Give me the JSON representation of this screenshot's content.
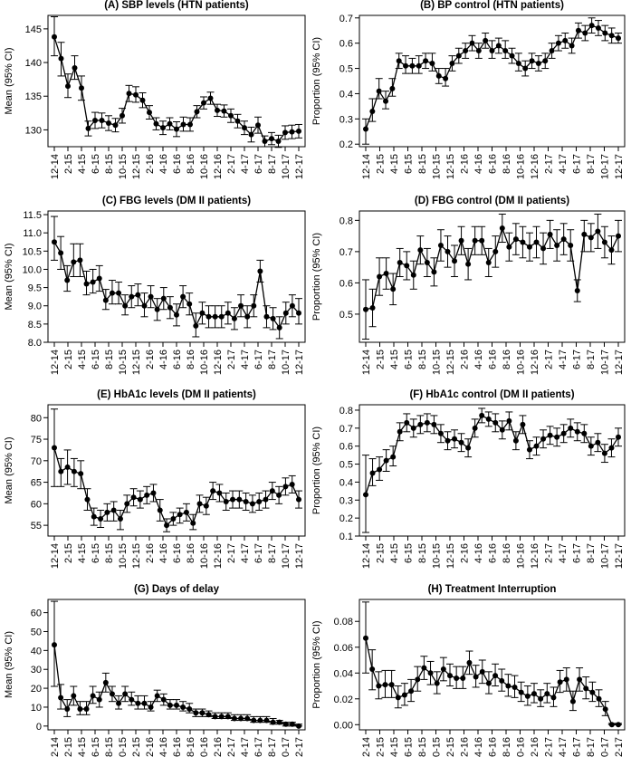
{
  "x_tick_labels": [
    "12-14",
    "2-15",
    "4-15",
    "6-15",
    "8-15",
    "10-15",
    "12-15",
    "2-16",
    "4-16",
    "6-16",
    "8-16",
    "10-16",
    "12-16",
    "2-17",
    "4-17",
    "6-17",
    "8-17",
    "10-17",
    "12-17"
  ],
  "chart_data": [
    {
      "type": "line",
      "title": "(A) SBP levels (HTN patients)",
      "ylabel": "Mean (95% CI)",
      "ylim": [
        127.5,
        147
      ],
      "yticks": [
        130,
        135,
        140,
        145
      ],
      "grid": false,
      "values": [
        143.8,
        140.6,
        136.5,
        139.2,
        136.2,
        130.2,
        131.4,
        131.4,
        131.0,
        130.7,
        132.1,
        135.4,
        135.2,
        134.4,
        132.6,
        130.9,
        130.3,
        130.9,
        130.1,
        130.8,
        130.8,
        132.7,
        134.0,
        134.7,
        132.9,
        132.8,
        132.1,
        131.3,
        130.3,
        129.3,
        130.7,
        128.3,
        128.7,
        128.3,
        129.6,
        129.7,
        129.8
      ],
      "lower": [
        141.0,
        138.0,
        134.8,
        137.5,
        134.4,
        129.1,
        130.2,
        130.3,
        129.9,
        129.7,
        131.0,
        134.2,
        134.1,
        133.3,
        131.6,
        130.0,
        129.3,
        130.0,
        129.0,
        129.8,
        129.8,
        131.8,
        133.1,
        133.8,
        132.0,
        131.9,
        131.1,
        130.3,
        129.3,
        128.2,
        129.5,
        127.5,
        127.8,
        127.4,
        128.6,
        128.7,
        128.8
      ],
      "upper": [
        146.8,
        143.0,
        138.3,
        141.0,
        138.0,
        131.3,
        132.6,
        132.5,
        132.1,
        131.7,
        133.2,
        136.6,
        136.4,
        135.5,
        133.6,
        131.8,
        131.3,
        131.8,
        131.2,
        131.9,
        131.8,
        133.6,
        134.9,
        135.6,
        133.8,
        133.7,
        133.1,
        132.3,
        131.3,
        130.4,
        131.9,
        129.1,
        129.6,
        129.2,
        130.6,
        130.7,
        130.8
      ]
    },
    {
      "type": "line",
      "title": "(B) BP control (HTN patients)",
      "ylabel": "Proportion (95% CI)",
      "ylim": [
        0.19,
        0.71
      ],
      "yticks": [
        0.2,
        0.3,
        0.4,
        0.5,
        0.6,
        0.7
      ],
      "grid": false,
      "values": [
        0.26,
        0.33,
        0.41,
        0.37,
        0.42,
        0.53,
        0.51,
        0.51,
        0.51,
        0.53,
        0.52,
        0.47,
        0.46,
        0.52,
        0.55,
        0.57,
        0.6,
        0.57,
        0.61,
        0.57,
        0.59,
        0.57,
        0.55,
        0.52,
        0.5,
        0.53,
        0.52,
        0.53,
        0.57,
        0.6,
        0.61,
        0.59,
        0.65,
        0.64,
        0.67,
        0.66,
        0.64,
        0.63,
        0.62
      ],
      "lower": [
        0.2,
        0.29,
        0.38,
        0.34,
        0.39,
        0.5,
        0.48,
        0.48,
        0.48,
        0.5,
        0.49,
        0.44,
        0.43,
        0.49,
        0.52,
        0.54,
        0.57,
        0.54,
        0.58,
        0.54,
        0.56,
        0.54,
        0.52,
        0.49,
        0.47,
        0.5,
        0.49,
        0.5,
        0.54,
        0.57,
        0.58,
        0.56,
        0.62,
        0.61,
        0.64,
        0.63,
        0.61,
        0.6,
        0.6
      ],
      "upper": [
        0.3,
        0.38,
        0.46,
        0.41,
        0.46,
        0.56,
        0.55,
        0.54,
        0.55,
        0.56,
        0.56,
        0.5,
        0.5,
        0.55,
        0.58,
        0.6,
        0.63,
        0.6,
        0.64,
        0.61,
        0.62,
        0.61,
        0.58,
        0.56,
        0.53,
        0.56,
        0.55,
        0.56,
        0.6,
        0.63,
        0.64,
        0.62,
        0.68,
        0.67,
        0.7,
        0.69,
        0.67,
        0.66,
        0.64
      ]
    },
    {
      "type": "line",
      "title": "(C) FBG levels (DM II patients)",
      "ylabel": "Mean (95% CI)",
      "ylim": [
        8.0,
        11.6
      ],
      "yticks": [
        8.0,
        8.5,
        9.0,
        9.5,
        10.0,
        10.5,
        11.0,
        11.5
      ],
      "grid": false,
      "values": [
        10.75,
        10.45,
        9.7,
        10.2,
        10.25,
        9.6,
        9.65,
        9.75,
        9.15,
        9.35,
        9.35,
        9.0,
        9.25,
        9.3,
        9.0,
        9.25,
        8.9,
        9.2,
        8.95,
        8.75,
        9.25,
        9.05,
        8.45,
        8.8,
        8.7,
        8.7,
        8.7,
        8.8,
        8.65,
        9.0,
        8.7,
        9.0,
        9.95,
        8.7,
        8.65,
        8.4,
        8.8,
        9.0,
        8.8
      ],
      "lower": [
        10.25,
        10.0,
        9.4,
        9.8,
        9.8,
        9.3,
        9.35,
        9.4,
        8.9,
        9.05,
        9.05,
        8.75,
        8.95,
        9.0,
        8.7,
        8.95,
        8.6,
        8.9,
        8.65,
        8.45,
        8.95,
        8.75,
        8.15,
        8.5,
        8.4,
        8.4,
        8.4,
        8.5,
        8.35,
        8.7,
        8.4,
        8.7,
        9.65,
        8.4,
        8.35,
        8.1,
        8.5,
        8.7,
        8.5
      ],
      "upper": [
        11.45,
        10.9,
        10.1,
        10.7,
        10.7,
        9.95,
        10.0,
        10.1,
        9.45,
        9.7,
        9.65,
        9.3,
        9.55,
        9.6,
        9.35,
        9.55,
        9.2,
        9.5,
        9.25,
        9.05,
        9.55,
        9.35,
        8.8,
        9.1,
        9.0,
        9.0,
        9.0,
        9.1,
        8.95,
        9.3,
        9.0,
        9.3,
        10.25,
        9.0,
        8.95,
        8.7,
        9.1,
        9.3,
        9.2
      ]
    },
    {
      "type": "line",
      "title": "(D) FBG control (DM II patients)",
      "ylabel": "Proportion (95% CI)",
      "ylim": [
        0.41,
        0.83
      ],
      "yticks": [
        0.5,
        0.6,
        0.7,
        0.8
      ],
      "grid": false,
      "values": [
        0.515,
        0.52,
        0.62,
        0.63,
        0.58,
        0.665,
        0.655,
        0.625,
        0.705,
        0.665,
        0.635,
        0.72,
        0.7,
        0.67,
        0.735,
        0.66,
        0.735,
        0.735,
        0.665,
        0.7,
        0.775,
        0.715,
        0.74,
        0.73,
        0.715,
        0.73,
        0.71,
        0.755,
        0.72,
        0.74,
        0.72,
        0.575,
        0.755,
        0.745,
        0.765,
        0.73,
        0.705,
        0.75
      ],
      "lower": [
        0.42,
        0.46,
        0.56,
        0.58,
        0.53,
        0.62,
        0.61,
        0.58,
        0.66,
        0.62,
        0.59,
        0.67,
        0.65,
        0.62,
        0.69,
        0.61,
        0.69,
        0.69,
        0.62,
        0.65,
        0.73,
        0.67,
        0.69,
        0.68,
        0.67,
        0.68,
        0.66,
        0.71,
        0.67,
        0.69,
        0.67,
        0.54,
        0.7,
        0.7,
        0.71,
        0.68,
        0.66,
        0.7
      ],
      "upper": [
        0.61,
        0.58,
        0.68,
        0.68,
        0.63,
        0.71,
        0.7,
        0.67,
        0.75,
        0.71,
        0.68,
        0.77,
        0.75,
        0.72,
        0.78,
        0.71,
        0.78,
        0.78,
        0.71,
        0.75,
        0.82,
        0.76,
        0.79,
        0.78,
        0.76,
        0.78,
        0.76,
        0.8,
        0.77,
        0.79,
        0.77,
        0.61,
        0.8,
        0.79,
        0.82,
        0.78,
        0.75,
        0.8
      ]
    },
    {
      "type": "line",
      "title": "(E) HbA1c levels (DM II patients)",
      "ylabel": "Mean (95% CI)",
      "ylim": [
        52.5,
        83
      ],
      "yticks": [
        55,
        60,
        65,
        70,
        75,
        80
      ],
      "grid": false,
      "values": [
        73,
        67.5,
        68.5,
        67.5,
        67,
        61,
        57,
        56.5,
        58,
        58.5,
        56.5,
        60,
        61.5,
        61,
        62,
        62.5,
        58.5,
        55,
        56.5,
        57.5,
        58,
        55.5,
        60,
        59.5,
        63,
        62.5,
        60.5,
        61,
        61,
        60.5,
        60,
        60.5,
        61,
        63,
        62,
        64,
        64.5,
        61
      ],
      "lower": [
        64,
        64,
        64.5,
        64,
        63.5,
        58.5,
        55,
        54.5,
        56,
        56,
        54,
        58,
        59.5,
        59,
        60,
        60.5,
        56,
        53.5,
        55,
        55.5,
        56,
        54,
        58,
        57.5,
        61,
        60.5,
        58.5,
        59,
        59,
        58.5,
        58,
        58.5,
        59,
        61,
        60,
        62,
        62.5,
        59
      ],
      "upper": [
        82,
        70.5,
        72.5,
        70.5,
        70,
        63.5,
        59,
        58.5,
        60,
        60.5,
        58.5,
        62,
        63.5,
        63,
        64,
        64.5,
        61,
        56.5,
        58,
        59,
        60,
        57.5,
        62,
        61.5,
        65,
        64.5,
        62.5,
        63,
        63,
        62.5,
        62,
        62.5,
        63,
        65,
        64,
        66,
        66.5,
        63
      ]
    },
    {
      "type": "line",
      "title": "(F) HbA1c control (DM II patients)",
      "ylabel": "Proportion (95% CI)",
      "ylim": [
        0.1,
        0.83
      ],
      "yticks": [
        0.1,
        0.2,
        0.3,
        0.4,
        0.5,
        0.6,
        0.7,
        0.8
      ],
      "grid": false,
      "values": [
        0.33,
        0.45,
        0.47,
        0.52,
        0.54,
        0.68,
        0.73,
        0.7,
        0.72,
        0.73,
        0.72,
        0.67,
        0.63,
        0.64,
        0.62,
        0.59,
        0.7,
        0.77,
        0.75,
        0.73,
        0.69,
        0.74,
        0.63,
        0.72,
        0.58,
        0.6,
        0.64,
        0.66,
        0.65,
        0.67,
        0.7,
        0.68,
        0.67,
        0.6,
        0.62,
        0.56,
        0.59,
        0.65
      ],
      "lower": [
        0.12,
        0.38,
        0.41,
        0.46,
        0.49,
        0.63,
        0.68,
        0.65,
        0.67,
        0.68,
        0.67,
        0.62,
        0.58,
        0.59,
        0.57,
        0.54,
        0.65,
        0.73,
        0.71,
        0.68,
        0.64,
        0.69,
        0.58,
        0.67,
        0.53,
        0.55,
        0.59,
        0.61,
        0.6,
        0.62,
        0.65,
        0.63,
        0.62,
        0.55,
        0.57,
        0.51,
        0.54,
        0.6
      ],
      "upper": [
        0.55,
        0.53,
        0.54,
        0.58,
        0.6,
        0.73,
        0.78,
        0.75,
        0.77,
        0.78,
        0.77,
        0.72,
        0.68,
        0.69,
        0.67,
        0.64,
        0.75,
        0.81,
        0.79,
        0.78,
        0.74,
        0.79,
        0.68,
        0.77,
        0.63,
        0.65,
        0.69,
        0.71,
        0.7,
        0.72,
        0.75,
        0.73,
        0.72,
        0.65,
        0.67,
        0.61,
        0.64,
        0.7
      ]
    },
    {
      "type": "line",
      "title": "(G) Days of delay",
      "ylabel": "Mean (95% CI)",
      "ylim": [
        -2,
        67
      ],
      "yticks": [
        0,
        10,
        20,
        30,
        40,
        50,
        60
      ],
      "grid": false,
      "values": [
        43,
        15,
        9,
        16,
        9,
        9,
        16,
        14,
        23,
        17,
        12,
        17,
        14,
        12,
        12,
        10,
        16,
        14,
        11,
        11,
        10,
        9,
        7,
        7,
        6,
        5,
        5,
        5,
        4,
        4,
        4,
        3,
        3,
        3,
        2,
        2,
        1,
        1,
        0
      ],
      "lower": [
        21,
        9,
        5,
        11,
        6,
        6,
        12,
        10,
        18,
        13,
        9,
        13,
        11,
        9,
        9,
        8,
        13,
        11,
        9,
        9,
        8,
        7,
        5,
        5,
        5,
        4,
        4,
        4,
        3,
        3,
        3,
        2,
        2,
        2,
        1,
        1,
        0,
        0,
        0
      ],
      "upper": [
        66,
        22,
        14,
        21,
        13,
        13,
        21,
        18,
        28,
        21,
        16,
        21,
        18,
        16,
        16,
        13,
        19,
        17,
        14,
        14,
        13,
        12,
        9,
        9,
        8,
        7,
        7,
        7,
        6,
        6,
        6,
        5,
        5,
        5,
        4,
        3,
        2,
        2,
        1
      ]
    },
    {
      "type": "line",
      "title": "(H) Treatment Interruption",
      "ylabel": "Proportion (95% CI)",
      "ylim": [
        -0.004,
        0.097
      ],
      "yticks": [
        0.0,
        0.02,
        0.04,
        0.06,
        0.08
      ],
      "grid": false,
      "values": [
        0.067,
        0.043,
        0.03,
        0.031,
        0.031,
        0.021,
        0.023,
        0.026,
        0.035,
        0.044,
        0.04,
        0.032,
        0.043,
        0.038,
        0.036,
        0.036,
        0.048,
        0.037,
        0.041,
        0.032,
        0.038,
        0.034,
        0.03,
        0.029,
        0.025,
        0.022,
        0.024,
        0.02,
        0.024,
        0.021,
        0.033,
        0.035,
        0.018,
        0.035,
        0.028,
        0.025,
        0.02,
        0.012,
        0.0,
        0.0
      ],
      "lower": [
        0.04,
        0.027,
        0.02,
        0.021,
        0.021,
        0.013,
        0.015,
        0.018,
        0.026,
        0.035,
        0.031,
        0.024,
        0.034,
        0.03,
        0.028,
        0.028,
        0.039,
        0.029,
        0.032,
        0.024,
        0.03,
        0.026,
        0.022,
        0.021,
        0.018,
        0.015,
        0.017,
        0.014,
        0.017,
        0.014,
        0.025,
        0.026,
        0.011,
        0.026,
        0.02,
        0.018,
        0.014,
        0.007,
        0.0,
        0.0
      ],
      "upper": [
        0.095,
        0.058,
        0.041,
        0.042,
        0.042,
        0.03,
        0.032,
        0.035,
        0.045,
        0.053,
        0.049,
        0.041,
        0.052,
        0.047,
        0.045,
        0.045,
        0.057,
        0.046,
        0.05,
        0.041,
        0.047,
        0.043,
        0.039,
        0.038,
        0.033,
        0.03,
        0.032,
        0.027,
        0.032,
        0.029,
        0.042,
        0.044,
        0.026,
        0.044,
        0.037,
        0.033,
        0.027,
        0.018,
        0.001,
        0.001
      ]
    }
  ]
}
